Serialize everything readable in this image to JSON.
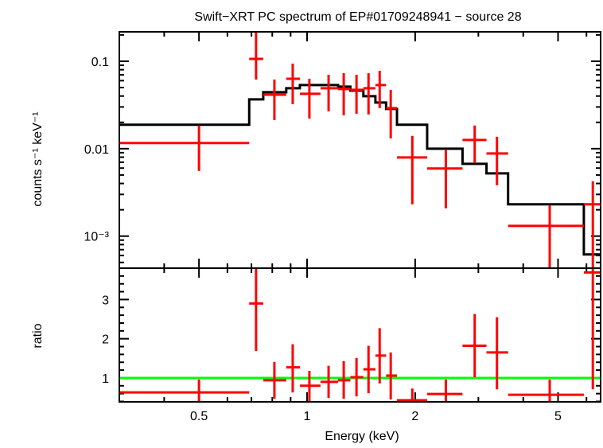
{
  "chart_data": [
    {
      "type": "scatter",
      "title": "Swift−XRT PC spectrum of EP#01709248941 − source 28",
      "xlabel": "Energy (keV)",
      "ylabel": "counts s⁻¹ keV⁻¹",
      "xscale": "log",
      "yscale": "log",
      "xlim": [
        0.3,
        6.57
      ],
      "ylim": [
        0.00043,
        0.217
      ],
      "yticks": [
        {
          "value": 0.1,
          "label": "0.1"
        },
        {
          "value": 0.01,
          "label": "0.01"
        },
        {
          "value": 0.001,
          "label": "10⁻³"
        }
      ],
      "colors": {
        "data": "#ff0000",
        "model": "#000000"
      },
      "series": [
        {
          "kind": "data-with-errors",
          "points": [
            {
              "e": 0.5,
              "elo": 0.3,
              "ehi": 0.69,
              "y": 0.0116,
              "ylo": 0.00556,
              "yhi": 0.0184
            },
            {
              "e": 0.721,
              "elo": 0.69,
              "ehi": 0.755,
              "y": 0.1065,
              "ylo": 0.0618,
              "yhi": 0.22
            },
            {
              "e": 0.811,
              "elo": 0.755,
              "ehi": 0.875,
              "y": 0.0415,
              "ylo": 0.0212,
              "yhi": 0.0618
            },
            {
              "e": 0.912,
              "elo": 0.875,
              "ehi": 0.955,
              "y": 0.0631,
              "ylo": 0.0323,
              "yhi": 0.094
            },
            {
              "e": 1.015,
              "elo": 0.955,
              "ehi": 1.09,
              "y": 0.0424,
              "ylo": 0.0221,
              "yhi": 0.0631
            },
            {
              "e": 1.148,
              "elo": 1.09,
              "ehi": 1.22,
              "y": 0.0491,
              "ylo": 0.0267,
              "yhi": 0.07
            },
            {
              "e": 1.265,
              "elo": 1.22,
              "ehi": 1.32,
              "y": 0.0481,
              "ylo": 0.0241,
              "yhi": 0.0731
            },
            {
              "e": 1.373,
              "elo": 1.32,
              "ehi": 1.435,
              "y": 0.0471,
              "ylo": 0.0251,
              "yhi": 0.07
            },
            {
              "e": 1.483,
              "elo": 1.435,
              "ehi": 1.55,
              "y": 0.0491,
              "ylo": 0.0246,
              "yhi": 0.0731
            },
            {
              "e": 1.593,
              "elo": 1.55,
              "ehi": 1.66,
              "y": 0.0534,
              "ylo": 0.0291,
              "yhi": 0.0778
            },
            {
              "e": 1.71,
              "elo": 1.66,
              "ehi": 1.78,
              "y": 0.0291,
              "ylo": 0.0131,
              "yhi": 0.0471
            },
            {
              "e": 1.964,
              "elo": 1.78,
              "ehi": 2.16,
              "y": 0.00794,
              "ylo": 0.00231,
              "yhi": 0.014
            },
            {
              "e": 2.435,
              "elo": 2.16,
              "ehi": 2.71,
              "y": 0.00593,
              "ylo": 0.00208,
              "yhi": 0.0096
            },
            {
              "e": 2.93,
              "elo": 2.71,
              "ehi": 3.16,
              "y": 0.0126,
              "ylo": 0.00686,
              "yhi": 0.0184
            },
            {
              "e": 3.38,
              "elo": 3.16,
              "ehi": 3.63,
              "y": 0.00881,
              "ylo": 0.00382,
              "yhi": 0.0137
            },
            {
              "e": 4.74,
              "elo": 3.63,
              "ehi": 5.9,
              "y": 0.00131,
              "ylo": 0.0003,
              "yhi": 0.00226
            },
            {
              "e": 6.25,
              "elo": 5.9,
              "ehi": 6.57,
              "y": 0.00231,
              "ylo": 0.0003,
              "yhi": 0.00424
            }
          ]
        },
        {
          "kind": "model-step",
          "edges": [
            0.3,
            0.69,
            0.755,
            0.875,
            0.955,
            1.09,
            1.22,
            1.32,
            1.435,
            1.55,
            1.66,
            1.78,
            2.16,
            2.71,
            3.16,
            3.63,
            5.9,
            6.57
          ],
          "values": [
            0.0188,
            0.0366,
            0.0442,
            0.0491,
            0.0534,
            0.0534,
            0.0512,
            0.0461,
            0.0398,
            0.0337,
            0.0285,
            0.0188,
            0.01,
            0.00672,
            0.00522,
            0.00231,
            0.000618
          ]
        }
      ]
    },
    {
      "type": "scatter",
      "xlabel": "Energy (keV)",
      "ylabel": "ratio",
      "xscale": "log",
      "xlim": [
        0.3,
        6.57
      ],
      "ylim": [
        0.39,
        3.8
      ],
      "xticks": [
        {
          "value": 0.5,
          "label": "0.5"
        },
        {
          "value": 1,
          "label": "1"
        },
        {
          "value": 2,
          "label": "2"
        },
        {
          "value": 5,
          "label": "5"
        }
      ],
      "yticks": [
        {
          "value": 1,
          "label": "1"
        },
        {
          "value": 2,
          "label": "2"
        },
        {
          "value": 3,
          "label": "3"
        }
      ],
      "reference_line": {
        "y": 1,
        "color": "#00ff00"
      },
      "colors": {
        "data": "#ff0000"
      },
      "points": [
        {
          "e": 0.5,
          "elo": 0.3,
          "ehi": 0.69,
          "y": 0.63,
          "ylo": 0.3,
          "yhi": 0.96
        },
        {
          "e": 0.721,
          "elo": 0.69,
          "ehi": 0.755,
          "y": 2.9,
          "ylo": 1.69,
          "yhi": 3.9
        },
        {
          "e": 0.811,
          "elo": 0.755,
          "ehi": 0.875,
          "y": 0.94,
          "ylo": 0.47,
          "yhi": 1.41
        },
        {
          "e": 0.912,
          "elo": 0.875,
          "ehi": 0.955,
          "y": 1.27,
          "ylo": 0.63,
          "yhi": 1.86
        },
        {
          "e": 1.015,
          "elo": 0.955,
          "ehi": 1.09,
          "y": 0.8,
          "ylo": 0.41,
          "yhi": 1.18
        },
        {
          "e": 1.148,
          "elo": 1.09,
          "ehi": 1.22,
          "y": 0.9,
          "ylo": 0.49,
          "yhi": 1.31
        },
        {
          "e": 1.265,
          "elo": 1.22,
          "ehi": 1.32,
          "y": 0.94,
          "ylo": 0.47,
          "yhi": 1.43
        },
        {
          "e": 1.373,
          "elo": 1.32,
          "ehi": 1.435,
          "y": 1.02,
          "ylo": 0.53,
          "yhi": 1.51
        },
        {
          "e": 1.483,
          "elo": 1.435,
          "ehi": 1.55,
          "y": 1.22,
          "ylo": 0.61,
          "yhi": 1.82
        },
        {
          "e": 1.593,
          "elo": 1.55,
          "ehi": 1.66,
          "y": 1.57,
          "ylo": 0.86,
          "yhi": 2.27
        },
        {
          "e": 1.71,
          "elo": 1.66,
          "ehi": 1.78,
          "y": 1.06,
          "ylo": 0.45,
          "yhi": 1.65
        },
        {
          "e": 1.964,
          "elo": 1.78,
          "ehi": 2.16,
          "y": 0.43,
          "ylo": 0.2,
          "yhi": 0.73
        },
        {
          "e": 2.435,
          "elo": 2.16,
          "ehi": 2.71,
          "y": 0.59,
          "ylo": 0.2,
          "yhi": 0.96
        },
        {
          "e": 2.93,
          "elo": 2.71,
          "ehi": 3.16,
          "y": 1.82,
          "ylo": 1.02,
          "yhi": 2.63
        },
        {
          "e": 3.38,
          "elo": 3.16,
          "ehi": 3.63,
          "y": 1.65,
          "ylo": 0.71,
          "yhi": 2.55
        },
        {
          "e": 4.74,
          "elo": 3.63,
          "ehi": 5.9,
          "y": 0.57,
          "ylo": 0.2,
          "yhi": 0.96
        },
        {
          "e": 6.25,
          "elo": 5.9,
          "ehi": 6.57,
          "y": 3.69,
          "ylo": 0.71,
          "yhi": 4.2
        }
      ]
    }
  ]
}
